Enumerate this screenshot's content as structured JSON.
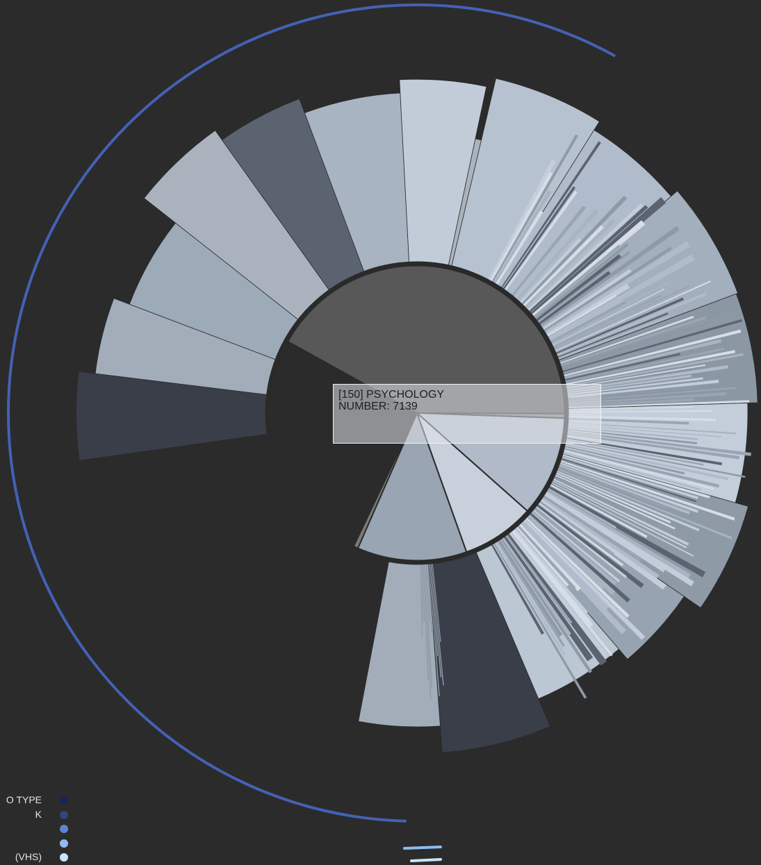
{
  "tooltip": {
    "line1": "[150] PSYCHOLOGY",
    "line2": "NUMBER: 7139"
  },
  "legend": [
    {
      "label": "O TYPE",
      "color": "#1b2750"
    },
    {
      "label": "K",
      "color": "#31467e"
    },
    {
      "label": "",
      "color": "#5a86cf"
    },
    {
      "label": "",
      "color": "#8fbcee"
    },
    {
      "label": "(VHS)",
      "color": "#c9e6fb"
    }
  ],
  "chart_data": {
    "type": "sunburst",
    "highlighted": {
      "code": "150",
      "label": "PSYCHOLOGY",
      "value": 7139
    },
    "inner_ring": [
      {
        "share": 0.42,
        "color": "#585858"
      },
      {
        "share": 0.005,
        "color": "#7a7a7a"
      },
      {
        "share": 0.11,
        "color": "#b0bac8"
      },
      {
        "share": 0.08,
        "color": "#c8d0dc"
      },
      {
        "share": 0.12,
        "color": "#9aa5b3"
      },
      {
        "share": 0.005,
        "color": "#7a7a7a"
      }
    ],
    "outer_wedges": [
      {
        "share": 0.06,
        "level": 0.96,
        "color": "#3a3e48"
      },
      {
        "share": 0.055,
        "level": 0.86,
        "color": "#a3adba"
      },
      {
        "share": 0.07,
        "level": 0.76,
        "color": "#9daab8"
      },
      {
        "share": 0.065,
        "level": 1.0,
        "color": "#aab3bd"
      },
      {
        "share": 0.06,
        "level": 0.93,
        "color": "#5c6370"
      },
      {
        "share": 0.07,
        "level": 0.84,
        "color": "#a9b4c2"
      },
      {
        "share": 0.06,
        "level": 0.92,
        "color": "#c2ccd9"
      },
      {
        "share": 0.005,
        "level": 0.6,
        "color": "#aab3bd"
      },
      {
        "share": 0.075,
        "level": 0.98,
        "color": "#b7c2d0"
      },
      {
        "share": 0.07,
        "level": 0.92,
        "color": "#b0bccb"
      },
      {
        "share": 0.08,
        "level": 0.97,
        "color": "#a3afbd"
      },
      {
        "share": 0.075,
        "level": 0.96,
        "color": "#8c97a4"
      },
      {
        "share": 0.07,
        "level": 0.9,
        "color": "#c3ceda"
      },
      {
        "share": 0.075,
        "level": 0.98,
        "color": "#8f9aa7"
      },
      {
        "share": 0.06,
        "level": 0.86,
        "color": "#97a3b0"
      },
      {
        "share": 0.07,
        "level": 0.78,
        "color": "#bcc7d4"
      },
      {
        "share": 0.075,
        "level": 0.96,
        "color": "#3a3e48"
      },
      {
        "share": 0.06,
        "level": 0.8,
        "color": "#a3adba"
      }
    ]
  }
}
